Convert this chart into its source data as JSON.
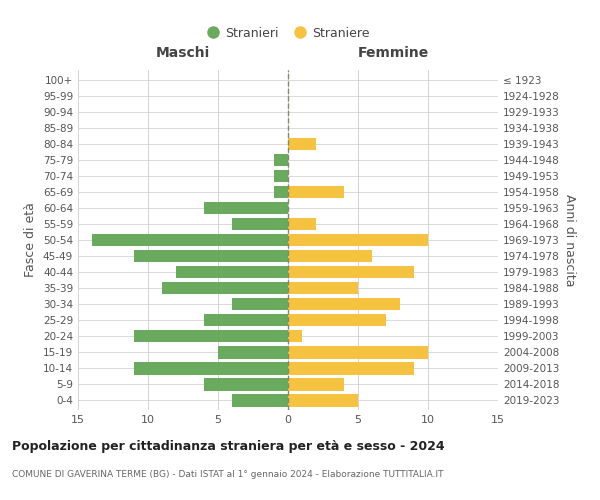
{
  "age_groups": [
    "0-4",
    "5-9",
    "10-14",
    "15-19",
    "20-24",
    "25-29",
    "30-34",
    "35-39",
    "40-44",
    "45-49",
    "50-54",
    "55-59",
    "60-64",
    "65-69",
    "70-74",
    "75-79",
    "80-84",
    "85-89",
    "90-94",
    "95-99",
    "100+"
  ],
  "birth_years": [
    "2019-2023",
    "2014-2018",
    "2009-2013",
    "2004-2008",
    "1999-2003",
    "1994-1998",
    "1989-1993",
    "1984-1988",
    "1979-1983",
    "1974-1978",
    "1969-1973",
    "1964-1968",
    "1959-1963",
    "1954-1958",
    "1949-1953",
    "1944-1948",
    "1939-1943",
    "1934-1938",
    "1929-1933",
    "1924-1928",
    "≤ 1923"
  ],
  "males": [
    4,
    6,
    11,
    5,
    11,
    6,
    4,
    9,
    8,
    11,
    14,
    4,
    6,
    1,
    1,
    1,
    0,
    0,
    0,
    0,
    0
  ],
  "females": [
    5,
    4,
    9,
    10,
    1,
    7,
    8,
    5,
    9,
    6,
    10,
    2,
    0,
    4,
    0,
    0,
    2,
    0,
    0,
    0,
    0
  ],
  "male_color": "#6aaa5e",
  "female_color": "#f5c242",
  "background_color": "#ffffff",
  "grid_color": "#cccccc",
  "title": "Popolazione per cittadinanza straniera per età e sesso - 2024",
  "subtitle": "COMUNE DI GAVERINA TERME (BG) - Dati ISTAT al 1° gennaio 2024 - Elaborazione TUTTITALIA.IT",
  "xlabel_left": "Maschi",
  "xlabel_right": "Femmine",
  "ylabel_left": "Fasce di età",
  "ylabel_right": "Anni di nascita",
  "xlim": 15,
  "legend_stranieri": "Stranieri",
  "legend_straniere": "Straniere"
}
